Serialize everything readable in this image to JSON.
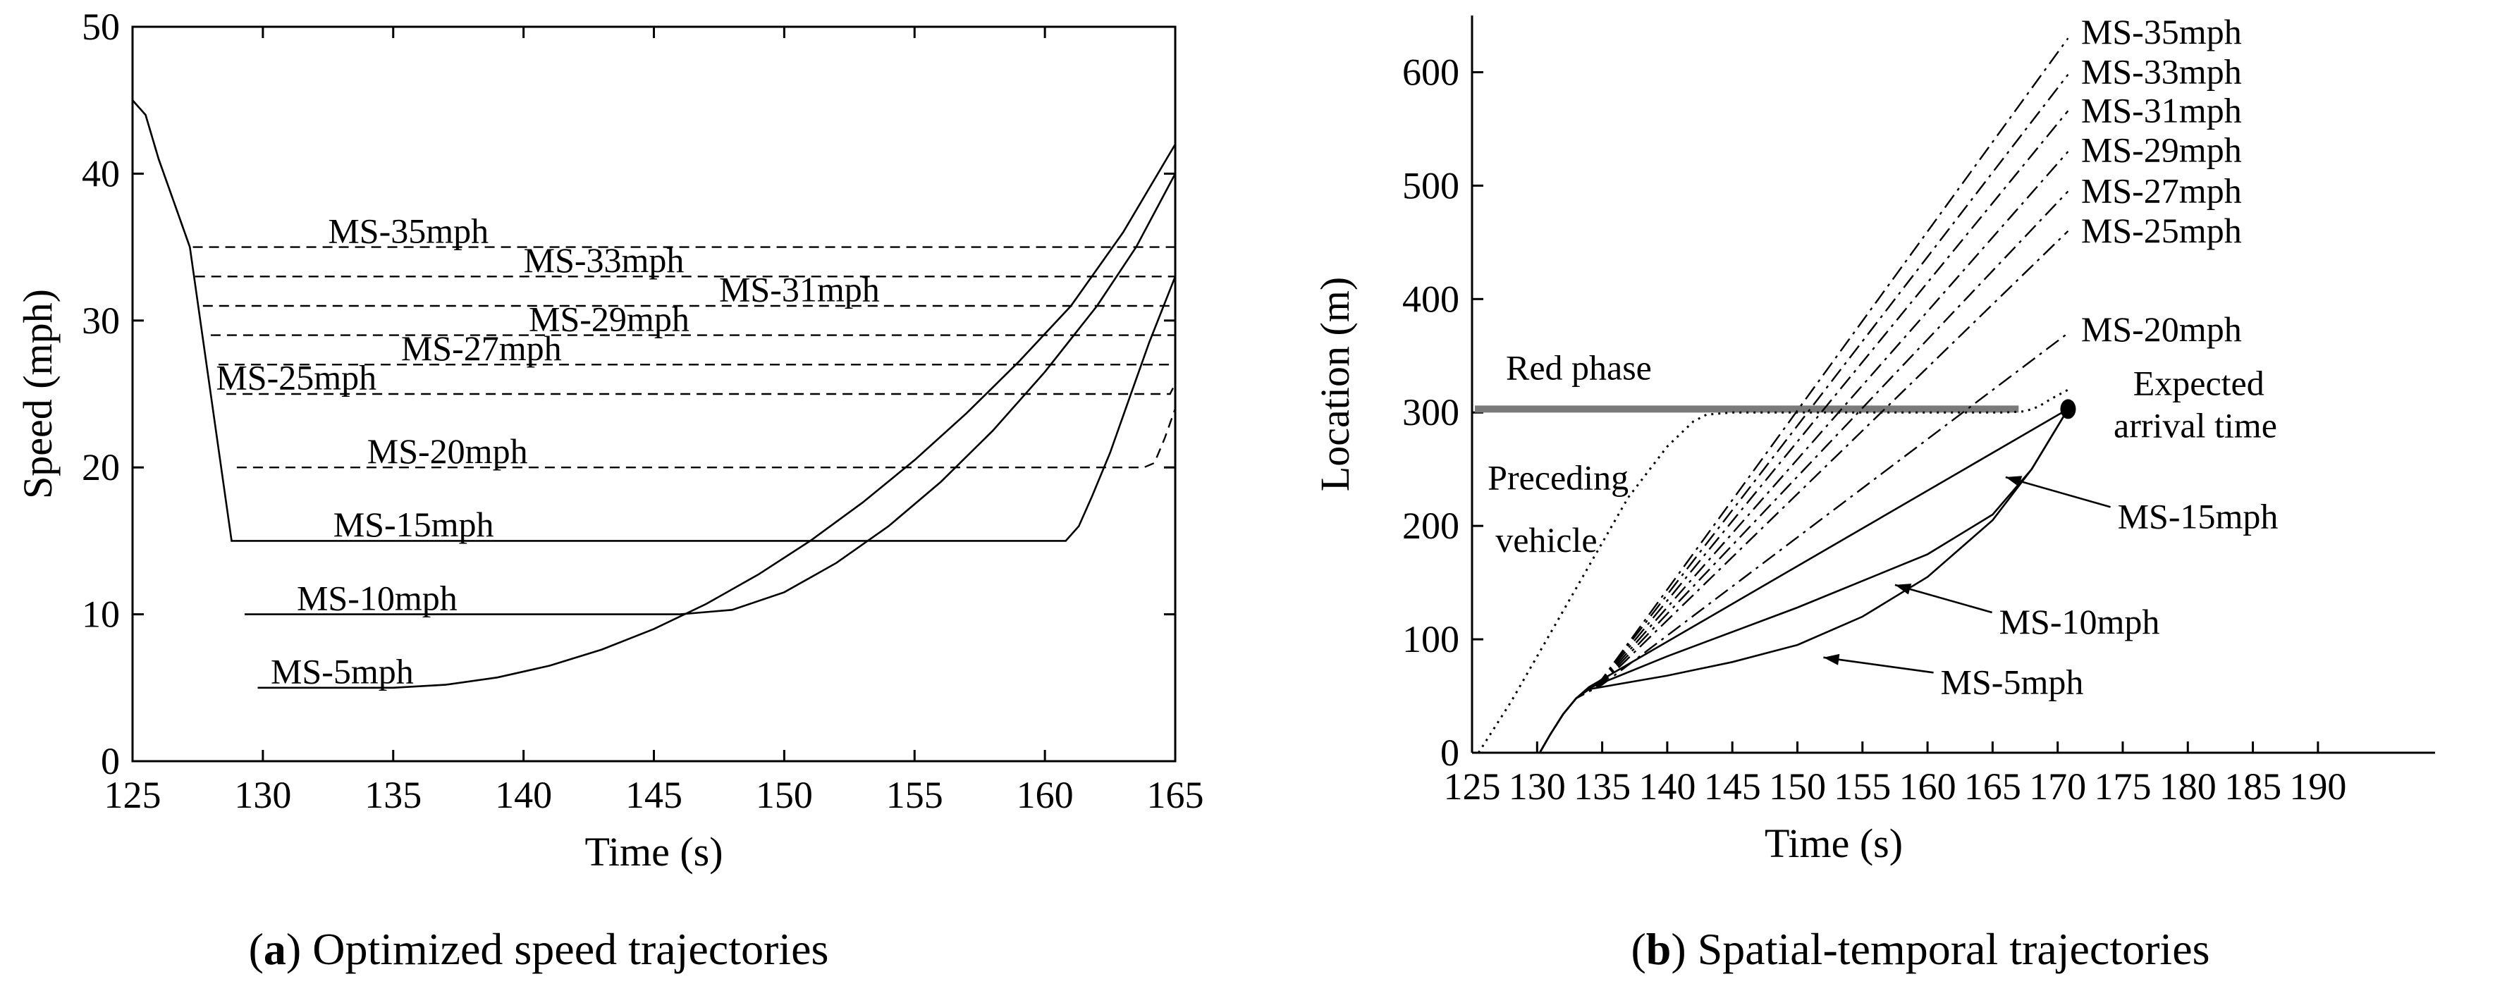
{
  "chart_data": [
    {
      "type": "line",
      "id": "a",
      "caption_letter": "a",
      "caption_text": " Optimized speed trajectories",
      "xlabel": "Time (s)",
      "ylabel": "Speed (mph)",
      "xlim": [
        125,
        165
      ],
      "ylim": [
        0,
        50
      ],
      "xticks": [
        125,
        130,
        135,
        140,
        145,
        150,
        155,
        160,
        165
      ],
      "yticks": [
        0,
        10,
        20,
        30,
        40,
        50
      ],
      "series": [
        {
          "name": "MS-35mph",
          "style": "dashed",
          "x": [
            125,
            125.5,
            126,
            126.6,
            127.2,
            165
          ],
          "y": [
            45,
            44,
            41,
            38,
            35,
            35
          ]
        },
        {
          "name": "MS-33mph",
          "style": "dashed",
          "x": [
            127.4,
            165
          ],
          "y": [
            33,
            33
          ]
        },
        {
          "name": "MS-31mph",
          "style": "dashed",
          "x": [
            127.7,
            165
          ],
          "y": [
            31,
            31
          ]
        },
        {
          "name": "MS-29mph",
          "style": "dashed",
          "x": [
            128.0,
            165
          ],
          "y": [
            29,
            29
          ]
        },
        {
          "name": "MS-27mph",
          "style": "dashed",
          "x": [
            128.3,
            165
          ],
          "y": [
            27,
            27
          ]
        },
        {
          "name": "MS-25mph",
          "style": "dashed",
          "x": [
            128.6,
            164.8,
            165
          ],
          "y": [
            25,
            25,
            25.7
          ]
        },
        {
          "name": "MS-20mph",
          "style": "dashed",
          "x": [
            129.0,
            163.8,
            164.2,
            164.6,
            165
          ],
          "y": [
            20,
            20,
            20.3,
            22,
            24
          ]
        },
        {
          "name": "MS-15mph",
          "style": "solid",
          "x": [
            125,
            125.5,
            126,
            126.6,
            127.2,
            128.8,
            160.8,
            161.3,
            161.8,
            162.5,
            163.2,
            164,
            165
          ],
          "y": [
            45,
            44,
            41,
            38,
            35,
            15,
            15,
            16,
            18,
            21,
            24.5,
            28.5,
            33
          ]
        },
        {
          "name": "MS-10mph",
          "style": "solid",
          "x": [
            129.3,
            146,
            148,
            150,
            152,
            154,
            156,
            158,
            160,
            162,
            163.5,
            165
          ],
          "y": [
            10,
            10,
            10.3,
            11.5,
            13.5,
            16,
            19,
            22.5,
            26.5,
            31,
            35,
            40
          ]
        },
        {
          "name": "MS-5mph",
          "style": "solid",
          "x": [
            129.8,
            135,
            137,
            139,
            141,
            143,
            145,
            147,
            149,
            151,
            153,
            155,
            157,
            159,
            161,
            163,
            165
          ],
          "y": [
            5,
            5,
            5.2,
            5.7,
            6.5,
            7.6,
            9,
            10.7,
            12.7,
            15,
            17.6,
            20.5,
            23.7,
            27.2,
            31,
            36,
            42
          ]
        }
      ],
      "labels": [
        {
          "text": "MS-35mph",
          "x": 132.5,
          "y": 35.3
        },
        {
          "text": "MS-33mph",
          "x": 140,
          "y": 33.3
        },
        {
          "text": "MS-31mph",
          "x": 147.5,
          "y": 31.3
        },
        {
          "text": "MS-29mph",
          "x": 140.2,
          "y": 29.3
        },
        {
          "text": "MS-27mph",
          "x": 135.3,
          "y": 27.3
        },
        {
          "text": "MS-25mph",
          "x": 128.2,
          "y": 25.3
        },
        {
          "text": "MS-20mph",
          "x": 134,
          "y": 20.3
        },
        {
          "text": "MS-15mph",
          "x": 132.7,
          "y": 15.3
        },
        {
          "text": "MS-10mph",
          "x": 131.3,
          "y": 10.3
        },
        {
          "text": "MS-5mph",
          "x": 130.3,
          "y": 5.3
        }
      ]
    },
    {
      "type": "line",
      "id": "b",
      "caption_letter": "b",
      "caption_text": " Spatial-temporal trajectories",
      "xlabel": "Time (s)",
      "ylabel": "Location (m)",
      "xlim": [
        125,
        199
      ],
      "ylim": [
        0,
        650
      ],
      "xticks": [
        125,
        130,
        135,
        140,
        145,
        150,
        155,
        160,
        165,
        170,
        175,
        180,
        185,
        190
      ],
      "yticks": [
        0,
        100,
        200,
        300,
        400,
        500,
        600
      ],
      "red_phase": {
        "label": "Red phase",
        "x_start": 125,
        "x_end": 167,
        "y": 303
      },
      "expected_arrival": {
        "label_line1": "Expected",
        "label_line2": "arrival time",
        "x": 170.8,
        "y": 303
      },
      "preceding_vehicle": {
        "label_line1": "Preceding",
        "label_line2": "vehicle",
        "style": "dotted",
        "x": [
          125.5,
          128,
          131,
          134,
          137,
          140,
          142,
          143,
          145,
          150,
          160,
          166,
          167.5,
          168.5,
          169.5,
          170.8
        ],
        "y": [
          0,
          45,
          105,
          165,
          225,
          270,
          292,
          298,
          300,
          300,
          300,
          300,
          301,
          305,
          312,
          320
        ]
      },
      "series": [
        {
          "name": "MS-35mph",
          "style": "dashdot",
          "x": [
            130.2,
            131,
            132,
            133,
            135,
            170.8
          ],
          "y": [
            0,
            16,
            34,
            48,
            65,
            630
          ]
        },
        {
          "name": "MS-33mph",
          "style": "dashdot",
          "x": [
            130.2,
            131,
            132,
            133,
            135,
            170.8
          ],
          "y": [
            0,
            16,
            34,
            48,
            65,
            598
          ]
        },
        {
          "name": "MS-31mph",
          "style": "dashdot",
          "x": [
            130.2,
            131,
            132,
            133,
            135,
            170.8
          ],
          "y": [
            0,
            16,
            34,
            48,
            64,
            566
          ]
        },
        {
          "name": "MS-29mph",
          "style": "dashdot",
          "x": [
            130.2,
            131,
            132,
            133,
            135,
            170.8
          ],
          "y": [
            0,
            16,
            34,
            48,
            63,
            530
          ]
        },
        {
          "name": "MS-27mph",
          "style": "dashdot",
          "x": [
            130.2,
            131,
            132,
            133,
            135,
            170.8
          ],
          "y": [
            0,
            16,
            34,
            48,
            62,
            495
          ]
        },
        {
          "name": "MS-25mph",
          "style": "dashdot",
          "x": [
            130.2,
            131,
            132,
            133,
            135,
            170.8
          ],
          "y": [
            0,
            16,
            34,
            48,
            61,
            460
          ]
        },
        {
          "name": "MS-20mph",
          "style": "dashdot",
          "x": [
            130.2,
            131,
            132,
            133,
            135,
            170.8
          ],
          "y": [
            0,
            16,
            34,
            48,
            60,
            370
          ]
        },
        {
          "name": "MS-15mph",
          "style": "solid",
          "x": [
            130.2,
            131,
            132,
            133,
            134,
            170.8
          ],
          "y": [
            0,
            16,
            34,
            48,
            58,
            303
          ]
        },
        {
          "name": "MS-10mph",
          "style": "solid",
          "x": [
            130.2,
            131,
            132,
            133,
            134,
            140,
            150,
            160,
            165,
            168,
            170.8
          ],
          "y": [
            0,
            16,
            34,
            48,
            57,
            85,
            128,
            175,
            210,
            250,
            303
          ]
        },
        {
          "name": "MS-5mph",
          "style": "solid",
          "x": [
            130.2,
            131,
            132,
            133,
            134,
            140,
            145,
            150,
            155,
            160,
            165,
            168,
            170.8
          ],
          "y": [
            0,
            16,
            34,
            48,
            56,
            68,
            80,
            95,
            120,
            155,
            205,
            250,
            303
          ]
        }
      ],
      "labels": [
        {
          "text": "MS-35mph",
          "x": 171.8,
          "y": 625
        },
        {
          "text": "MS-33mph",
          "x": 171.8,
          "y": 590
        },
        {
          "text": "MS-31mph",
          "x": 171.8,
          "y": 556
        },
        {
          "text": "MS-29mph",
          "x": 171.8,
          "y": 521
        },
        {
          "text": "MS-27mph",
          "x": 171.8,
          "y": 485
        },
        {
          "text": "MS-25mph",
          "x": 171.8,
          "y": 450
        },
        {
          "text": "MS-20mph",
          "x": 171.8,
          "y": 363
        }
      ],
      "arrow_labels": [
        {
          "text": "MS-15mph",
          "x": 174.6,
          "y": 198,
          "arrow_to_x": 166,
          "arrow_to_y": 243
        },
        {
          "text": "MS-10mph",
          "x": 165.5,
          "y": 105,
          "arrow_to_x": 157.5,
          "arrow_to_y": 148
        },
        {
          "text": "MS-5mph",
          "x": 161,
          "y": 52,
          "arrow_to_x": 152,
          "arrow_to_y": 84
        }
      ]
    }
  ]
}
